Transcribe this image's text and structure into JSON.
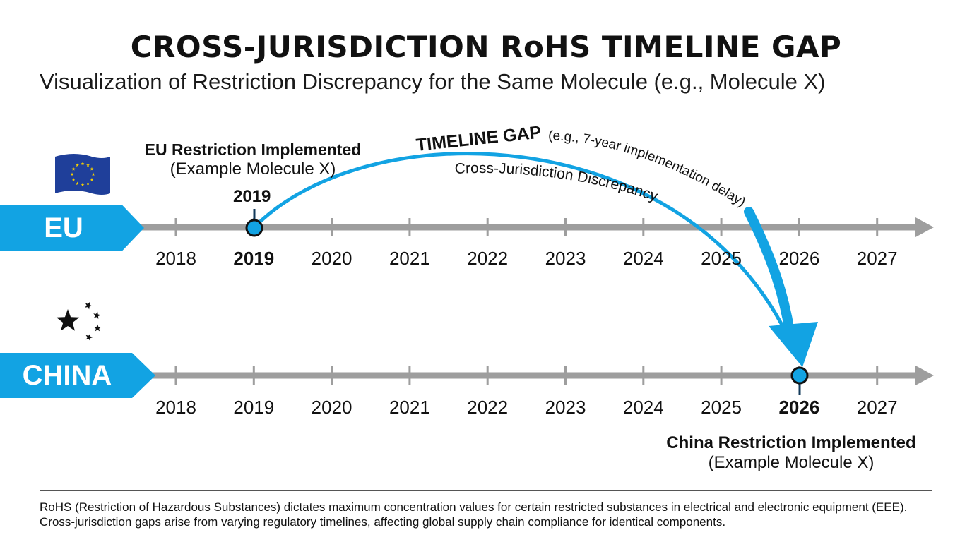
{
  "title": "CROSS-JURISDICTION RoHS TIMELINE GAP",
  "subtitle": "Visualization of Restriction Discrepancy for the Same Molecule (e.g., Molecule X)",
  "years": [
    "2018",
    "2019",
    "2020",
    "2021",
    "2022",
    "2023",
    "2024",
    "2025",
    "2026",
    "2027"
  ],
  "eu": {
    "label": "EU",
    "event_year": "2019",
    "callout_head": "EU Restriction Implemented",
    "callout_sub": "(Example Molecule X)",
    "marker_year": "2019"
  },
  "china": {
    "label": "CHINA",
    "event_year": "2026",
    "callout_head": "China Restriction Implemented",
    "callout_sub": "(Example Molecule X)"
  },
  "gap": {
    "head": "TIMELINE GAP",
    "detail": "(e.g., 7-year implementation delay)",
    "discrepancy": "Cross-Jurisdiction Discrepancy"
  },
  "footer": {
    "line1": "RoHS (Restriction of Hazardous Substances) dictates maximum concentration values for certain restricted substances in electrical and electronic equipment (EEE).",
    "line2": "Cross-jurisdiction gaps arise from varying regulatory timelines, affecting global supply chain compliance for identical components."
  },
  "colors": {
    "accent": "#12a3e3",
    "axis": "#9e9e9e",
    "eu_flag": "#1f3f9a",
    "eu_stars": "#f5d000"
  },
  "icons": {
    "eu": "eu-flag-icon",
    "china": "china-stars-icon"
  }
}
